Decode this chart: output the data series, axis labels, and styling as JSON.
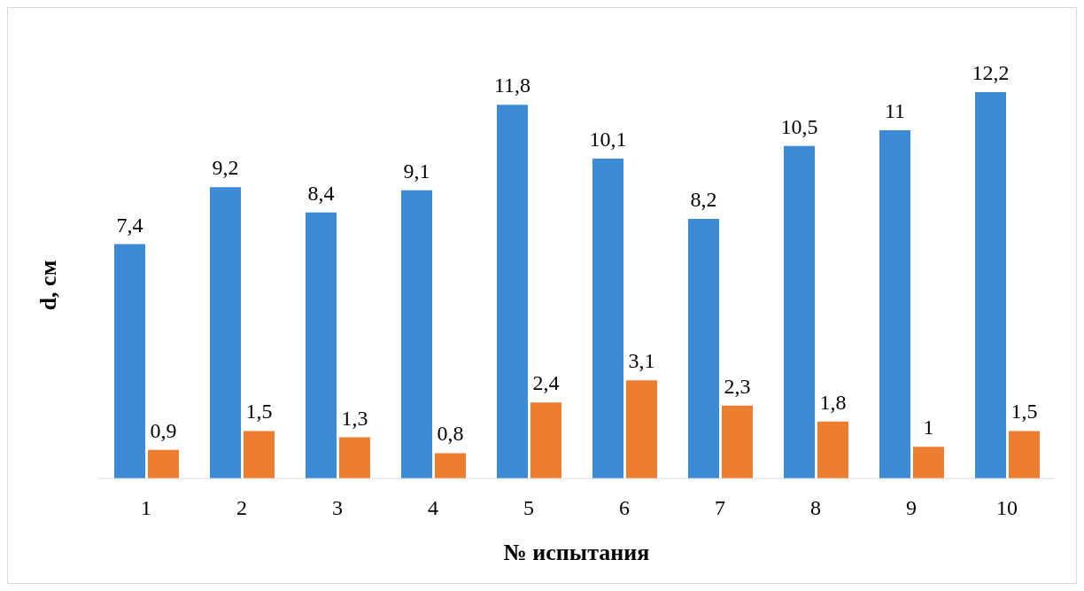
{
  "chart_data": {
    "type": "bar",
    "xlabel": "№ испытания",
    "ylabel": "d, см",
    "categories": [
      "1",
      "2",
      "3",
      "4",
      "5",
      "6",
      "7",
      "8",
      "9",
      "10"
    ],
    "series": [
      {
        "color": "#3d8ad6",
        "values": [
          7.4,
          9.2,
          8.4,
          9.1,
          11.8,
          10.1,
          8.2,
          10.5,
          11,
          12.2
        ],
        "value_labels": [
          "7,4",
          "9,2",
          "8,4",
          "9,1",
          "11,8",
          "10,1",
          "8,2",
          "10,5",
          "11",
          "12,2"
        ]
      },
      {
        "color": "#ed7d31",
        "values": [
          0.9,
          1.5,
          1.3,
          0.8,
          2.4,
          3.1,
          2.3,
          1.8,
          1,
          1.5
        ],
        "value_labels": [
          "0,9",
          "1,5",
          "1,3",
          "0,8",
          "2,4",
          "3,1",
          "2,3",
          "1,8",
          "1",
          "1,5"
        ]
      }
    ]
  }
}
